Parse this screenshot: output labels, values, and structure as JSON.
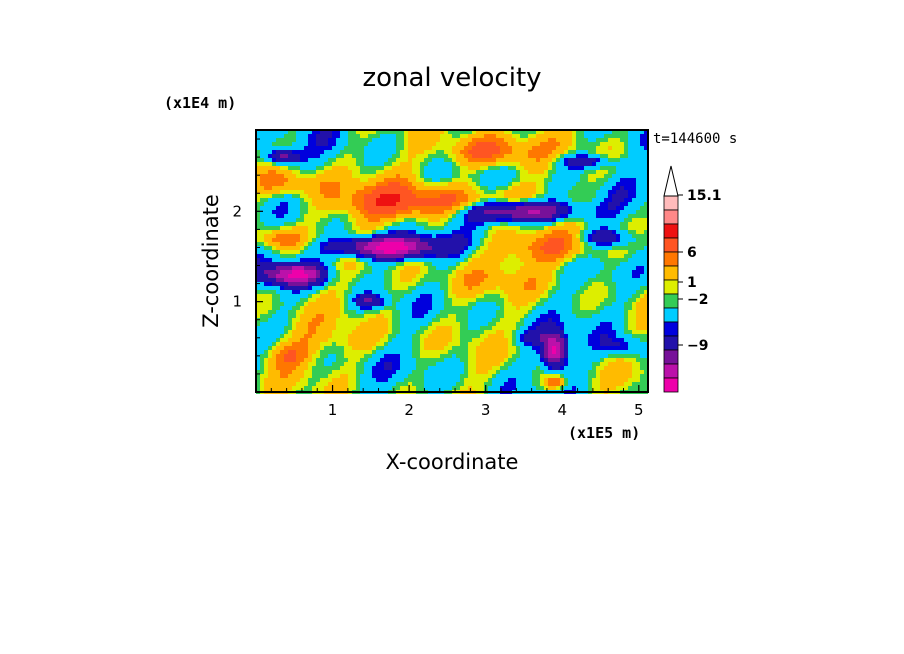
{
  "chart_data": {
    "type": "heatmap",
    "title": "zonal velocity",
    "xlabel": "X-coordinate",
    "ylabel": "Z-coordinate",
    "x_multiplier": "(x1E5 m)",
    "y_multiplier": "(x1E4 m)",
    "time_label": "t=144600 s",
    "xlim": [
      0,
      5.12
    ],
    "ylim": [
      0,
      2.9
    ],
    "x_ticks": [
      {
        "value": 1,
        "label": "1"
      },
      {
        "value": 2,
        "label": "2"
      },
      {
        "value": 3,
        "label": "3"
      },
      {
        "value": 4,
        "label": "4"
      },
      {
        "value": 5,
        "label": "5"
      }
    ],
    "y_ticks": [
      {
        "value": 1,
        "label": "1"
      },
      {
        "value": 2,
        "label": "2"
      }
    ],
    "colorbar": {
      "levels": [
        {
          "color": "#ee00aa"
        },
        {
          "color": "#bb11aa"
        },
        {
          "color": "#771199"
        },
        {
          "color": "#2211aa"
        },
        {
          "color": "#0000dd"
        },
        {
          "color": "#00ccff"
        },
        {
          "color": "#33cc55"
        },
        {
          "color": "#ddee00"
        },
        {
          "color": "#ffbb00"
        },
        {
          "color": "#ff7700"
        },
        {
          "color": "#ff5522"
        },
        {
          "color": "#ee1111"
        },
        {
          "color": "#ff8888"
        },
        {
          "color": "#ffbbbb"
        }
      ],
      "labels": [
        "15.1",
        "6",
        "1",
        "−2",
        "−9"
      ],
      "max_arrow": true
    },
    "field_features": [
      {
        "x": 1.7,
        "z": 2.1,
        "sx": 0.9,
        "sz": 0.2,
        "v": 6
      },
      {
        "x": 3.0,
        "z": 2.05,
        "sx": 1.0,
        "sz": 0.18,
        "v": 6
      },
      {
        "x": 3.0,
        "z": 2.65,
        "sx": 0.6,
        "sz": 0.18,
        "v": 7
      },
      {
        "x": 0.4,
        "z": 2.3,
        "sx": 0.45,
        "sz": 0.15,
        "v": 5
      },
      {
        "x": 3.9,
        "z": 1.6,
        "sx": 0.7,
        "sz": 0.18,
        "v": 6
      },
      {
        "x": 0.3,
        "z": 1.7,
        "sx": 0.3,
        "sz": 0.12,
        "v": 5
      },
      {
        "x": 3.4,
        "z": 2.0,
        "sx": 0.75,
        "sz": 0.13,
        "v": -16
      },
      {
        "x": 1.7,
        "z": 1.6,
        "sx": 0.65,
        "sz": 0.12,
        "v": -15
      },
      {
        "x": 0.5,
        "z": 1.3,
        "sx": 0.4,
        "sz": 0.12,
        "v": -12
      },
      {
        "x": 0.35,
        "z": 2.6,
        "sx": 0.2,
        "sz": 0.08,
        "v": -9
      },
      {
        "x": 4.3,
        "z": 2.55,
        "sx": 0.35,
        "sz": 0.08,
        "v": -6
      },
      {
        "x": 4.6,
        "z": 1.7,
        "sx": 0.35,
        "sz": 0.1,
        "v": -6
      },
      {
        "x": 1.5,
        "z": 1.0,
        "sx": 0.2,
        "sz": 0.08,
        "v": -6
      },
      {
        "x": 3.9,
        "z": 0.45,
        "sx": 0.15,
        "sz": 0.18,
        "v": -14
      },
      {
        "x": 4.8,
        "z": 0.5,
        "sx": 0.25,
        "sz": 0.12,
        "v": -4
      },
      {
        "x": 3.6,
        "z": 0.6,
        "sx": 0.3,
        "sz": 0.1,
        "v": -3
      },
      {
        "x": 1.0,
        "z": 0.55,
        "sx": 1.0,
        "sz": 0.2,
        "v": 2
      },
      {
        "x": 2.6,
        "z": 1.2,
        "sx": 1.0,
        "sz": 0.2,
        "v": 2
      },
      {
        "x": 0.4,
        "z": 0.4,
        "sx": 0.3,
        "sz": 0.15,
        "v": 4
      },
      {
        "x": 3.9,
        "z": 0.1,
        "sx": 0.15,
        "sz": 0.08,
        "v": 7
      }
    ]
  }
}
